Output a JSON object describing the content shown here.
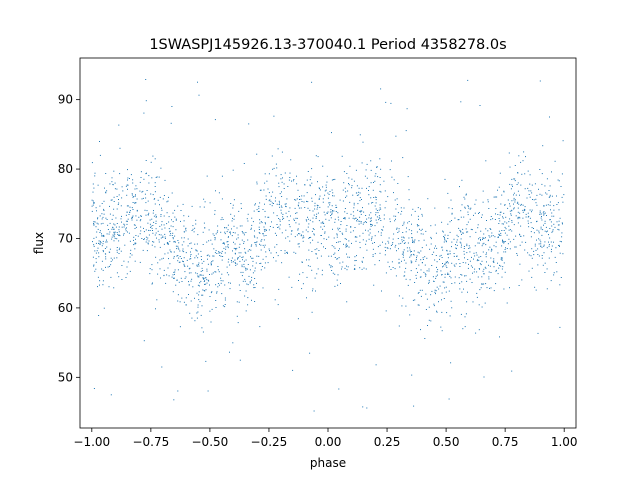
{
  "chart_data": {
    "type": "scatter",
    "title": "1SWASPJ145926.13-370040.1 Period 4358278.0s",
    "xlabel": "phase",
    "ylabel": "flux",
    "xlim": [
      -1.05,
      1.05
    ],
    "ylim": [
      42.7,
      96.0
    ],
    "x_ticks": [
      -1.0,
      -0.75,
      -0.5,
      -0.25,
      0.0,
      0.25,
      0.5,
      0.75,
      1.0
    ],
    "x_tick_labels": [
      "−1.00",
      "−0.75",
      "−0.50",
      "−0.25",
      "0.00",
      "0.25",
      "0.50",
      "0.75",
      "1.00"
    ],
    "y_ticks": [
      50,
      60,
      70,
      80,
      90
    ],
    "y_tick_labels": [
      "50",
      "60",
      "70",
      "80",
      "90"
    ],
    "grid": false,
    "marker_color": "#1f77b4",
    "series": [
      {
        "phase_range": [
          -1.0,
          1.0
        ],
        "trend_x": [
          -1.0,
          -0.95,
          -0.9,
          -0.85,
          -0.8,
          -0.75,
          -0.7,
          -0.65,
          -0.6,
          -0.55,
          -0.5,
          -0.45,
          -0.4,
          -0.35,
          -0.3,
          -0.25,
          -0.2,
          -0.15,
          -0.1,
          -0.05,
          0.0
        ],
        "trend_y": [
          72,
          70,
          71,
          73,
          74,
          72,
          71,
          69,
          67,
          65,
          66,
          68,
          69,
          67,
          69,
          72,
          74,
          73,
          71,
          72,
          73
        ],
        "scatter_spread": 4.0,
        "outlier_range": [
          45,
          94
        ]
      }
    ]
  }
}
